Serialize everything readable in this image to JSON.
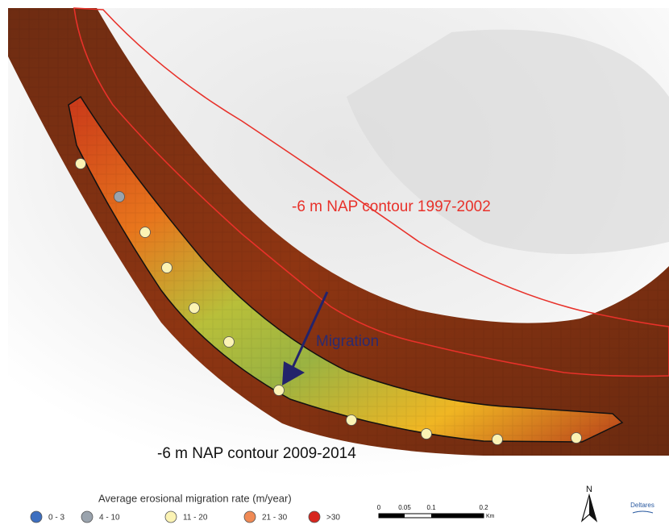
{
  "map": {
    "labels": {
      "contour_old": "-6 m NAP contour 1997-2002",
      "migration": "Migration",
      "contour_new": "-6 m NAP contour 2009-2014"
    },
    "legend": {
      "title": "Average erosional migration rate (m/year)",
      "items": [
        {
          "label": "0 - 3",
          "color": "#3d6fc0"
        },
        {
          "label": "4 - 10",
          "color": "#9aa3ad"
        },
        {
          "label": "11 - 20",
          "color": "#fbf3b4"
        },
        {
          "label": "21 - 30",
          "color": "#f08a55"
        },
        {
          "label": ">30",
          "color": "#d7261e"
        }
      ]
    },
    "scale_bar": {
      "labels": [
        "0",
        "0.05",
        "0.1",
        "0.2"
      ],
      "unit": "Km"
    },
    "north": "N",
    "logo": "Deltares"
  }
}
